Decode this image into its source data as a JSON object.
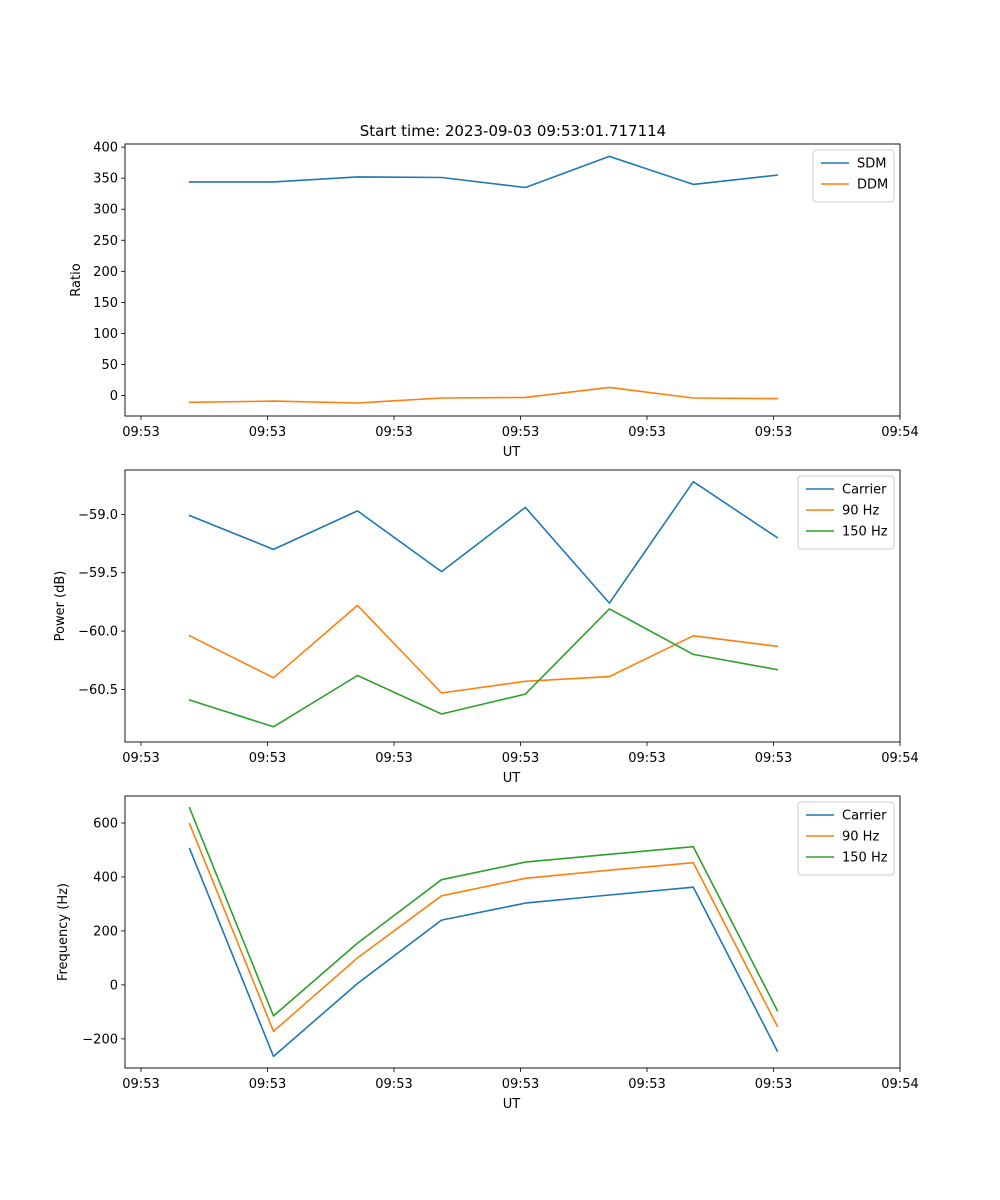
{
  "figure_title": "Start time: 2023-09-03 09:53:01.717114",
  "colors": {
    "blue": "#1f77b4",
    "orange": "#ff7f0e",
    "green": "#2ca02c"
  },
  "chart_data": [
    {
      "type": "line",
      "title": "Start time: 2023-09-03 09:53:01.717114",
      "xlabel": "UT",
      "ylabel": "Ratio",
      "x_tick_labels": [
        "09:53",
        "09:53",
        "09:53",
        "09:53",
        "09:53",
        "09:53",
        "09:54"
      ],
      "xlim": [
        0,
        12
      ],
      "ylim": [
        -33,
        405
      ],
      "y_ticks": [
        0,
        50,
        100,
        150,
        200,
        250,
        300,
        350,
        400
      ],
      "y_tick_labels": [
        "0",
        "50",
        "100",
        "150",
        "200",
        "250",
        "300",
        "350",
        "400"
      ],
      "legend_position": "top-right",
      "x": [
        1,
        2.3,
        3.6,
        4.9,
        6.2,
        7.5,
        8.8,
        10.1
      ],
      "series": [
        {
          "name": "SDM",
          "color": "#1f77b4",
          "values": [
            344,
            344,
            352,
            351,
            335,
            385,
            340,
            355
          ]
        },
        {
          "name": "DDM",
          "color": "#ff7f0e",
          "values": [
            -11,
            -9,
            -12,
            -4,
            -3,
            13,
            -4,
            -5
          ]
        }
      ]
    },
    {
      "type": "line",
      "title": "",
      "xlabel": "UT",
      "ylabel": "Power (dB)",
      "x_tick_labels": [
        "09:53",
        "09:53",
        "09:53",
        "09:53",
        "09:53",
        "09:53",
        "09:54"
      ],
      "xlim": [
        0,
        12
      ],
      "ylim": [
        -60.95,
        -58.62
      ],
      "y_ticks": [
        -60.5,
        -60.0,
        -59.5,
        -59.0
      ],
      "y_tick_labels": [
        "−60.5",
        "−60.0",
        "−59.5",
        "−59.0"
      ],
      "legend_position": "top-right",
      "x": [
        1,
        2.3,
        3.6,
        4.9,
        6.2,
        7.5,
        8.8,
        10.1
      ],
      "series": [
        {
          "name": "Carrier",
          "color": "#1f77b4",
          "values": [
            -59.01,
            -59.3,
            -58.97,
            -59.49,
            -58.94,
            -59.76,
            -58.72,
            -59.2
          ]
        },
        {
          "name": "90 Hz",
          "color": "#ff7f0e",
          "values": [
            -60.04,
            -60.4,
            -59.78,
            -60.53,
            -60.43,
            -60.39,
            -60.04,
            -60.13
          ]
        },
        {
          "name": "150 Hz",
          "color": "#2ca02c",
          "values": [
            -60.59,
            -60.82,
            -60.38,
            -60.71,
            -60.54,
            -59.81,
            -60.2,
            -60.33
          ]
        }
      ]
    },
    {
      "type": "line",
      "title": "",
      "xlabel": "UT",
      "ylabel": "Frequency (Hz)",
      "x_tick_labels": [
        "09:53",
        "09:53",
        "09:53",
        "09:53",
        "09:53",
        "09:53",
        "09:54"
      ],
      "xlim": [
        0,
        12
      ],
      "ylim": [
        -308,
        700
      ],
      "y_ticks": [
        -200,
        0,
        200,
        400,
        600
      ],
      "y_tick_labels": [
        "−200",
        "0",
        "200",
        "400",
        "600"
      ],
      "legend_position": "top-right",
      "x": [
        1,
        2.3,
        3.6,
        4.9,
        6.2,
        7.5,
        8.8,
        10.1
      ],
      "series": [
        {
          "name": "Carrier",
          "color": "#1f77b4",
          "values": [
            505,
            -265,
            5,
            240,
            303,
            333,
            362,
            -245
          ]
        },
        {
          "name": "90 Hz",
          "color": "#ff7f0e",
          "values": [
            597,
            -172,
            100,
            330,
            395,
            425,
            453,
            -153
          ]
        },
        {
          "name": "150 Hz",
          "color": "#2ca02c",
          "values": [
            656,
            -115,
            155,
            390,
            455,
            484,
            512,
            -95
          ]
        }
      ]
    }
  ]
}
